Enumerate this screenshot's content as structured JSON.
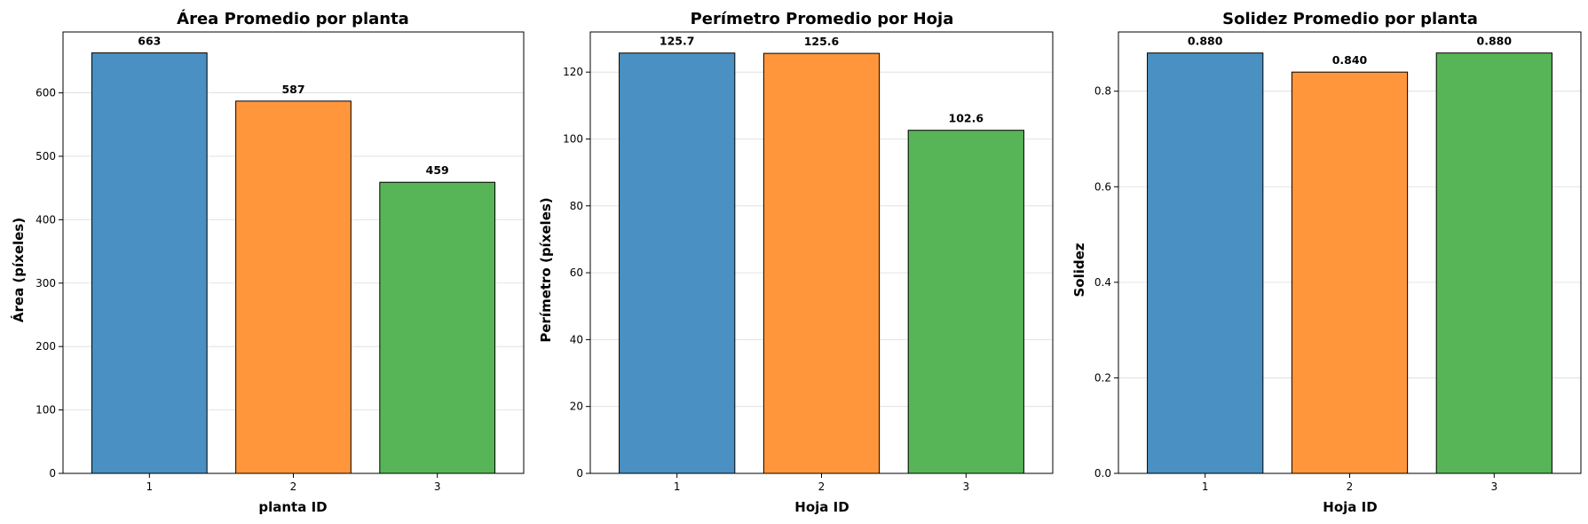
{
  "chart_data": [
    {
      "type": "bar",
      "title": "Área Promedio por planta",
      "xlabel": "planta ID",
      "ylabel": "Área (píxeles)",
      "categories": [
        "1",
        "2",
        "3"
      ],
      "values": [
        663,
        587,
        459
      ],
      "value_labels": [
        "663",
        "587",
        "459"
      ],
      "colors": [
        "#4a90c2",
        "#ff963c",
        "#57b457"
      ],
      "ylim": [
        0,
        696
      ],
      "yticks": [
        0,
        100,
        200,
        300,
        400,
        500,
        600
      ],
      "ytick_labels": [
        "0",
        "100",
        "200",
        "300",
        "400",
        "500",
        "600"
      ],
      "grid": true
    },
    {
      "type": "bar",
      "title": "Perímetro Promedio por Hoja",
      "xlabel": "Hoja ID",
      "ylabel": "Perímetro (píxeles)",
      "categories": [
        "1",
        "2",
        "3"
      ],
      "values": [
        125.7,
        125.6,
        102.6
      ],
      "value_labels": [
        "125.7",
        "125.6",
        "102.6"
      ],
      "colors": [
        "#4a90c2",
        "#ff963c",
        "#57b457"
      ],
      "ylim": [
        0,
        132
      ],
      "yticks": [
        0,
        20,
        40,
        60,
        80,
        100,
        120
      ],
      "ytick_labels": [
        "0",
        "20",
        "40",
        "60",
        "80",
        "100",
        "120"
      ],
      "grid": true
    },
    {
      "type": "bar",
      "title": "Solidez Promedio por planta",
      "xlabel": "Hoja ID",
      "ylabel": "Solidez",
      "categories": [
        "1",
        "2",
        "3"
      ],
      "values": [
        0.88,
        0.84,
        0.88
      ],
      "value_labels": [
        "0.880",
        "0.840",
        "0.880"
      ],
      "colors": [
        "#4a90c2",
        "#ff963c",
        "#57b457"
      ],
      "ylim": [
        0,
        0.924
      ],
      "yticks": [
        0,
        0.2,
        0.4,
        0.6,
        0.8
      ],
      "ytick_labels": [
        "0.0",
        "0.2",
        "0.4",
        "0.6",
        "0.8"
      ],
      "grid": true
    }
  ]
}
